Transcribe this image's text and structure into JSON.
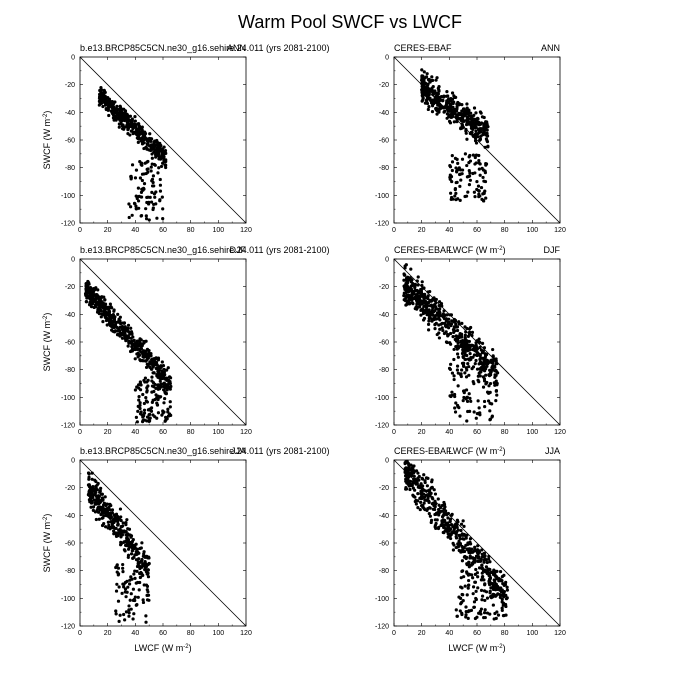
{
  "figure_title": "Warm Pool SWCF vs LWCF",
  "chart_data": [
    {
      "type": "scatter",
      "panel": "model-ann",
      "left_title": "b.e13.BRCP85C5CN.ne30_g16.sehire.24.011 (yrs 2081-2100)",
      "right_title": "ANN",
      "ylabel": "SWCF (W m-2)",
      "xlabel": "",
      "xlim": [
        0,
        120
      ],
      "ylim": [
        -120,
        0
      ],
      "xticks": [
        0,
        20,
        40,
        60,
        80,
        100,
        120
      ],
      "yticks": [
        -120,
        -100,
        -80,
        -60,
        -40,
        -20,
        0
      ],
      "reference_line": {
        "x": [
          0,
          120
        ],
        "y": [
          0,
          -120
        ]
      },
      "point_cloud": {
        "seed": 11,
        "n": 520,
        "x_range": [
          14,
          62
        ],
        "main_slope": -0.95,
        "intercept": -28,
        "spread": 5,
        "tail": {
          "x_range": [
            35,
            60
          ],
          "y_range": [
            -118,
            -75
          ]
        }
      }
    },
    {
      "type": "scatter",
      "panel": "obs-ann",
      "left_title": "CERES-EBAF",
      "right_title": "ANN",
      "ylabel": "",
      "xlabel": "",
      "xlim": [
        0,
        120
      ],
      "ylim": [
        -120,
        0
      ],
      "xticks": [
        0,
        20,
        40,
        60,
        80,
        100,
        120
      ],
      "yticks": [
        -120,
        -100,
        -80,
        -60,
        -40,
        -20,
        0
      ],
      "reference_line": {
        "x": [
          0,
          120
        ],
        "y": [
          0,
          -120
        ]
      },
      "point_cloud": {
        "seed": 23,
        "n": 520,
        "x_range": [
          20,
          68
        ],
        "main_slope": -0.7,
        "intercept": -22,
        "spread": 8,
        "tail": {
          "x_range": [
            40,
            68
          ],
          "y_range": [
            -105,
            -70
          ]
        }
      }
    },
    {
      "type": "scatter",
      "panel": "model-djf",
      "left_title": "b.e13.BRCP85C5CN.ne30_g16.sehire.24.011 (yrs 2081-2100)",
      "right_title": "DJF",
      "ylabel": "SWCF (W m-2)",
      "xlabel": "",
      "xlim": [
        0,
        120
      ],
      "ylim": [
        -120,
        0
      ],
      "xticks": [
        0,
        20,
        40,
        60,
        80,
        100,
        120
      ],
      "yticks": [
        -120,
        -100,
        -80,
        -60,
        -40,
        -20,
        0
      ],
      "reference_line": {
        "x": [
          0,
          120
        ],
        "y": [
          0,
          -120
        ]
      },
      "point_cloud": {
        "seed": 37,
        "n": 620,
        "x_range": [
          4,
          66
        ],
        "main_slope": -1.1,
        "intercept": -22,
        "spread": 6,
        "tail": {
          "x_range": [
            40,
            66
          ],
          "y_range": [
            -118,
            -85
          ]
        }
      }
    },
    {
      "type": "scatter",
      "panel": "obs-djf",
      "left_title": "CERES-EBAF",
      "right_title": "DJF",
      "overlap_label": "LWCF (W m-2)",
      "ylabel": "",
      "xlabel": "",
      "xlim": [
        0,
        120
      ],
      "ylim": [
        -120,
        0
      ],
      "xticks": [
        0,
        20,
        40,
        60,
        80,
        100,
        120
      ],
      "yticks": [
        -120,
        -100,
        -80,
        -60,
        -40,
        -20,
        0
      ],
      "reference_line": {
        "x": [
          0,
          120
        ],
        "y": [
          0,
          -120
        ]
      },
      "point_cloud": {
        "seed": 53,
        "n": 650,
        "x_range": [
          7,
          75
        ],
        "main_slope": -0.95,
        "intercept": -18,
        "spread": 9,
        "tail": {
          "x_range": [
            40,
            75
          ],
          "y_range": [
            -118,
            -70
          ]
        }
      }
    },
    {
      "type": "scatter",
      "panel": "model-jja",
      "left_title": "b.e13.BRCP85C5CN.ne30_g16.sehire.24.011 (yrs 2081-2100)",
      "right_title": "JJA",
      "ylabel": "SWCF (W m-2)",
      "xlabel": "LWCF (W m-2)",
      "xlim": [
        0,
        120
      ],
      "ylim": [
        -120,
        0
      ],
      "xticks": [
        0,
        20,
        40,
        60,
        80,
        100,
        120
      ],
      "yticks": [
        -120,
        -100,
        -80,
        -60,
        -40,
        -20,
        0
      ],
      "reference_line": {
        "x": [
          0,
          120
        ],
        "y": [
          0,
          -120
        ]
      },
      "point_cloud": {
        "seed": 71,
        "n": 420,
        "x_range": [
          6,
          50
        ],
        "main_slope": -1.35,
        "intercept": -20,
        "spread": 8,
        "tail": {
          "x_range": [
            25,
            50
          ],
          "y_range": [
            -118,
            -75
          ]
        }
      }
    },
    {
      "type": "scatter",
      "panel": "obs-jja",
      "left_title": "CERES-EBAF",
      "right_title": "JJA",
      "overlap_label": "LWCF (W m-2)",
      "ylabel": "",
      "xlabel": "LWCF (W m-2)",
      "xlim": [
        0,
        120
      ],
      "ylim": [
        -120,
        0
      ],
      "xticks": [
        0,
        20,
        40,
        60,
        80,
        100,
        120
      ],
      "yticks": [
        -120,
        -100,
        -80,
        -60,
        -40,
        -20,
        0
      ],
      "reference_line": {
        "x": [
          0,
          120
        ],
        "y": [
          0,
          -120
        ]
      },
      "point_cloud": {
        "seed": 89,
        "n": 620,
        "x_range": [
          8,
          82
        ],
        "main_slope": -1.25,
        "intercept": -8,
        "spread": 10,
        "tail": {
          "x_range": [
            45,
            82
          ],
          "y_range": [
            -115,
            -80
          ]
        }
      }
    }
  ]
}
